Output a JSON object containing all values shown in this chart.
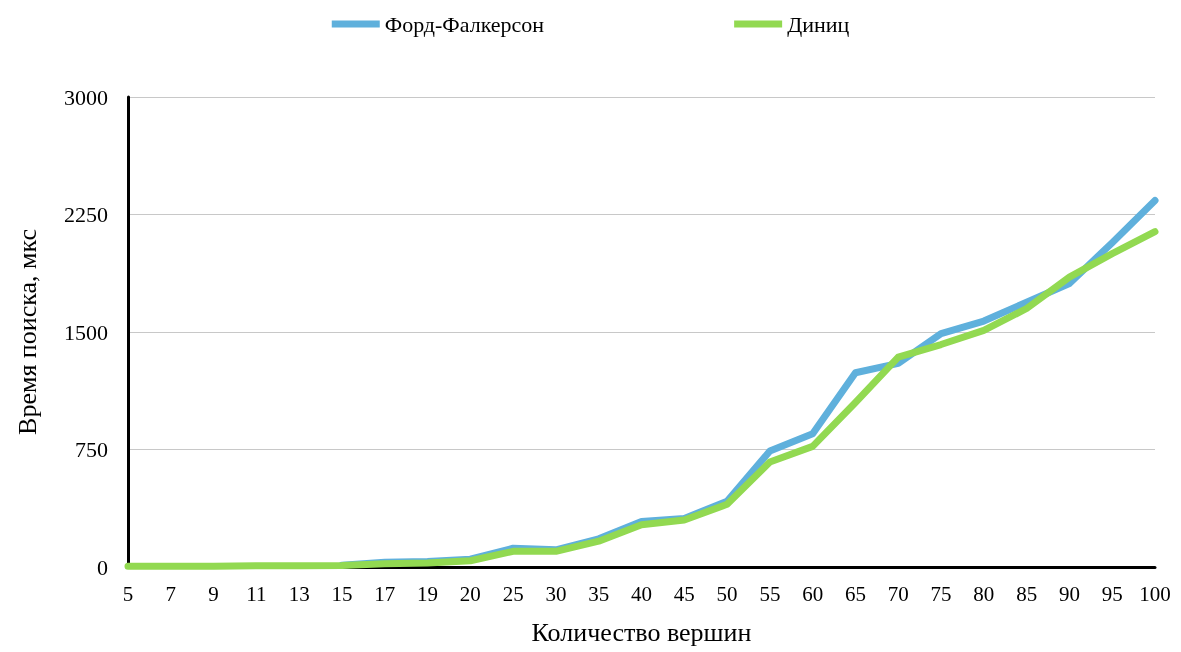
{
  "chart_data": {
    "type": "line",
    "xlabel": "Количество вершин",
    "ylabel": "Время поиска, мкс",
    "categories": [
      "5",
      "7",
      "9",
      "11",
      "13",
      "15",
      "17",
      "19",
      "20",
      "25",
      "30",
      "35",
      "40",
      "45",
      "50",
      "55",
      "60",
      "65",
      "70",
      "75",
      "80",
      "85",
      "90",
      "95",
      "100"
    ],
    "series": [
      {
        "name": "Форд-Фалкерсон",
        "color": "#5fb0dc",
        "values": [
          null,
          null,
          null,
          null,
          null,
          12,
          30,
          35,
          50,
          120,
          110,
          180,
          290,
          310,
          420,
          740,
          850,
          1240,
          1300,
          1490,
          1570,
          1690,
          1810,
          2070,
          2340
        ]
      },
      {
        "name": "Диниц",
        "color": "#92d951",
        "values": [
          5,
          5,
          5,
          8,
          8,
          10,
          20,
          25,
          40,
          100,
          100,
          165,
          270,
          300,
          400,
          670,
          770,
          1050,
          1340,
          1420,
          1510,
          1650,
          1850,
          2000,
          2140
        ]
      }
    ],
    "ylim": [
      0,
      3000
    ],
    "yticks": [
      0,
      750,
      1500,
      2250,
      3000
    ],
    "grid": "y",
    "legend": "top",
    "marker": "none",
    "line_style": "solid"
  }
}
